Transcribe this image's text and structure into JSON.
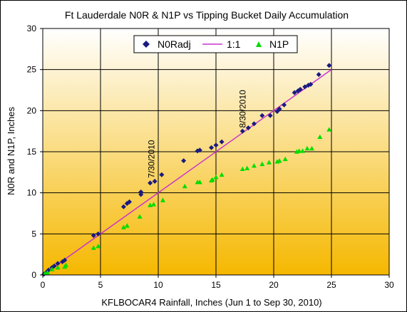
{
  "chart_data": {
    "type": "scatter",
    "title": "Ft Lauderdale N0R & N1P vs Tipping Bucket Daily Accumulation",
    "xlabel": "KFLBOCAR4 Rainfall, Inches (Jun 1 to Sep 30, 2010)",
    "ylabel": "N0R and N1P, Inches",
    "xlim": [
      0,
      30
    ],
    "ylim": [
      0,
      30
    ],
    "xticks": [
      "0",
      "5",
      "10",
      "15",
      "20",
      "25",
      "30"
    ],
    "yticks": [
      "0",
      "5",
      "10",
      "15",
      "20",
      "25",
      "30"
    ],
    "grid": true,
    "legend_position": "top-center",
    "background": {
      "top": "#ffffff",
      "bottom": "#f5b800"
    },
    "series": [
      {
        "name": "N0Radj",
        "marker": "diamond",
        "color": "#1a1a80",
        "points": [
          [
            0.1,
            0.1
          ],
          [
            0.3,
            0.3
          ],
          [
            0.5,
            0.6
          ],
          [
            0.8,
            0.9
          ],
          [
            1.0,
            1.1
          ],
          [
            1.3,
            1.4
          ],
          [
            1.7,
            1.6
          ],
          [
            1.9,
            1.8
          ],
          [
            4.4,
            4.8
          ],
          [
            4.8,
            5.0
          ],
          [
            7.0,
            8.3
          ],
          [
            7.3,
            8.7
          ],
          [
            7.5,
            8.9
          ],
          [
            8.5,
            9.8
          ],
          [
            8.5,
            10.1
          ],
          [
            9.3,
            11.2
          ],
          [
            9.7,
            11.4
          ],
          [
            10.3,
            12.2
          ],
          [
            12.2,
            13.9
          ],
          [
            13.4,
            15.1
          ],
          [
            13.6,
            15.2
          ],
          [
            14.6,
            15.5
          ],
          [
            15.0,
            15.8
          ],
          [
            15.5,
            16.2
          ],
          [
            17.3,
            17.5
          ],
          [
            17.8,
            17.9
          ],
          [
            18.3,
            18.4
          ],
          [
            19.0,
            19.4
          ],
          [
            19.7,
            19.4
          ],
          [
            20.3,
            19.9
          ],
          [
            20.5,
            20.2
          ],
          [
            20.9,
            20.7
          ],
          [
            21.8,
            22.2
          ],
          [
            22.1,
            22.4
          ],
          [
            22.3,
            22.6
          ],
          [
            22.7,
            22.9
          ],
          [
            23.0,
            23.1
          ],
          [
            23.2,
            23.2
          ],
          [
            23.9,
            24.4
          ],
          [
            24.8,
            25.5
          ]
        ]
      },
      {
        "name": "1:1",
        "style": "line",
        "color": "#cc33cc",
        "points": [
          [
            0,
            0
          ],
          [
            25,
            25
          ]
        ]
      },
      {
        "name": "N1P",
        "marker": "triangle",
        "color": "#00dd00",
        "points": [
          [
            0.2,
            0.2
          ],
          [
            0.4,
            0.3
          ],
          [
            0.8,
            0.7
          ],
          [
            1.3,
            0.9
          ],
          [
            1.9,
            1.0
          ],
          [
            2.0,
            1.2
          ],
          [
            4.4,
            3.3
          ],
          [
            4.8,
            3.5
          ],
          [
            7.0,
            5.8
          ],
          [
            7.3,
            6.0
          ],
          [
            8.4,
            7.1
          ],
          [
            9.3,
            8.5
          ],
          [
            9.6,
            8.6
          ],
          [
            10.4,
            9.1
          ],
          [
            12.3,
            10.8
          ],
          [
            13.4,
            11.3
          ],
          [
            13.6,
            11.3
          ],
          [
            14.6,
            11.5
          ],
          [
            14.7,
            11.6
          ],
          [
            15.0,
            11.9
          ],
          [
            15.5,
            12.2
          ],
          [
            17.3,
            12.9
          ],
          [
            17.7,
            13.0
          ],
          [
            18.3,
            13.3
          ],
          [
            19.0,
            13.5
          ],
          [
            19.6,
            13.7
          ],
          [
            20.3,
            13.8
          ],
          [
            20.5,
            13.9
          ],
          [
            21.0,
            14.1
          ],
          [
            22.0,
            15.0
          ],
          [
            22.2,
            15.1
          ],
          [
            22.5,
            15.1
          ],
          [
            22.9,
            15.4
          ],
          [
            23.3,
            15.4
          ],
          [
            24.0,
            16.8
          ],
          [
            24.8,
            17.7
          ]
        ]
      }
    ],
    "annotations": [
      {
        "text": "7/30/2010",
        "x": 9.4,
        "y": 11.8
      },
      {
        "text": "8/30/2010",
        "x": 17.3,
        "y": 17.9
      }
    ]
  }
}
